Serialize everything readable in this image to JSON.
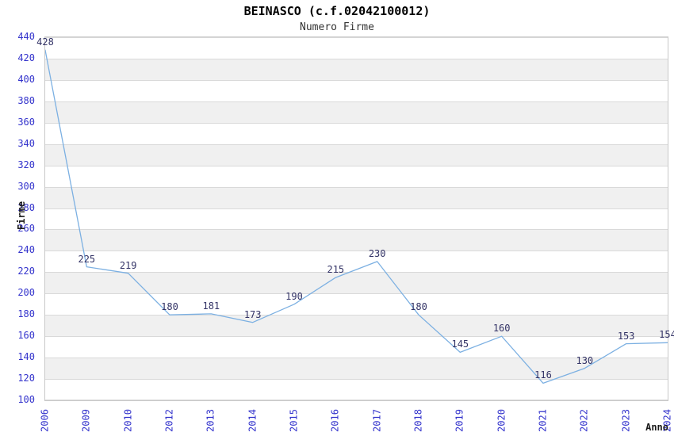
{
  "chart_data": {
    "type": "line",
    "title": "BEINASCO (c.f.02042100012)",
    "subtitle": "Numero Firme",
    "xlabel": "Anno",
    "ylabel": "Firme",
    "categories": [
      "2006",
      "2009",
      "2010",
      "2012",
      "2013",
      "2014",
      "2015",
      "2016",
      "2017",
      "2018",
      "2019",
      "2020",
      "2021",
      "2022",
      "2023",
      "2024"
    ],
    "values": [
      428,
      225,
      219,
      180,
      181,
      173,
      190,
      215,
      230,
      180,
      145,
      160,
      116,
      130,
      153,
      154
    ],
    "yticks": [
      440,
      420,
      400,
      380,
      360,
      340,
      320,
      300,
      280,
      260,
      240,
      220,
      200,
      180,
      160,
      140,
      120,
      100
    ],
    "ylim": [
      100,
      440
    ],
    "grid": "horizontal",
    "legend": "none",
    "colors": {
      "line": "#7cb0e2",
      "tick_labels": "#3333cc",
      "data_labels": "#333366",
      "band": "#f0f0f0",
      "gridline": "#d9d9d9"
    }
  }
}
